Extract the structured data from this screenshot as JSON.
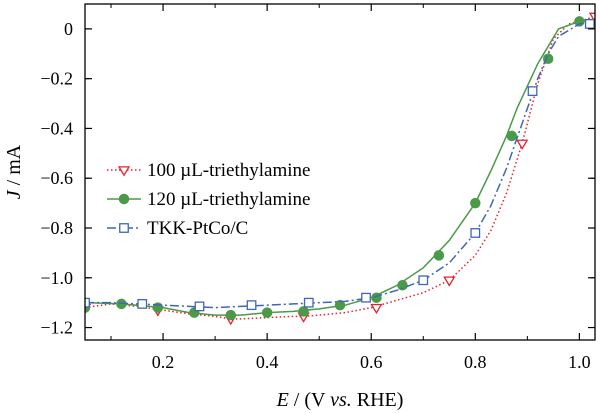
{
  "chart_data": {
    "type": "line",
    "xlabel": {
      "italic": "E",
      "pre": " / (V ",
      "mid_italic": "vs.",
      "post": " RHE)"
    },
    "ylabel": {
      "italic": "J",
      "post": " / mA"
    },
    "xlim": [
      0.05,
      1.03
    ],
    "ylim": [
      -1.25,
      0.1
    ],
    "xticks": [
      0.2,
      0.4,
      0.6,
      0.8,
      1.0
    ],
    "xtick_labels": [
      "0.2",
      "0.4",
      "0.6",
      "0.8",
      "1.0"
    ],
    "yticks": [
      0,
      -0.2,
      -0.4,
      -0.6,
      -0.8,
      -1.0,
      -1.2
    ],
    "ytick_labels": [
      "0",
      "−0.2",
      "−0.4",
      "−0.6",
      "−0.8",
      "−1.0",
      "−1.2"
    ],
    "grid": false,
    "legend_position": "center-left",
    "series": [
      {
        "name": "100 µL-triethylamine",
        "color": "#e8222b",
        "line_style": "dotted",
        "marker": "triangle-down-open",
        "x": [
          0.05,
          0.1,
          0.15,
          0.2,
          0.25,
          0.3,
          0.33,
          0.35,
          0.4,
          0.45,
          0.47,
          0.5,
          0.55,
          0.6,
          0.65,
          0.7,
          0.75,
          0.8,
          0.83,
          0.86,
          0.89,
          0.92,
          0.95,
          0.98,
          1.0,
          1.03
        ],
        "y": [
          -1.12,
          -1.105,
          -1.115,
          -1.13,
          -1.145,
          -1.155,
          -1.165,
          -1.165,
          -1.16,
          -1.155,
          -1.155,
          -1.15,
          -1.14,
          -1.12,
          -1.09,
          -1.06,
          -1.01,
          -0.91,
          -0.81,
          -0.66,
          -0.46,
          -0.22,
          -0.04,
          0.02,
          0.03,
          0.05
        ],
        "marker_x": [
          0.05,
          0.19,
          0.33,
          0.47,
          0.61,
          0.75,
          0.89,
          1.03
        ],
        "marker_y": [
          -1.12,
          -1.13,
          -1.165,
          -1.155,
          -1.12,
          -1.01,
          -0.46,
          0.05
        ]
      },
      {
        "name": "120 µL-triethylamine",
        "color": "#4a9a4a",
        "line_style": "solid",
        "marker": "circle-filled",
        "x": [
          0.05,
          0.12,
          0.2,
          0.25,
          0.3,
          0.35,
          0.4,
          0.45,
          0.5,
          0.55,
          0.6,
          0.65,
          0.7,
          0.75,
          0.8,
          0.83,
          0.86,
          0.88,
          0.9,
          0.92,
          0.94,
          0.96,
          1.0,
          1.03
        ],
        "y": [
          -1.1,
          -1.105,
          -1.12,
          -1.14,
          -1.15,
          -1.15,
          -1.14,
          -1.135,
          -1.125,
          -1.11,
          -1.08,
          -1.03,
          -0.96,
          -0.85,
          -0.7,
          -0.57,
          -0.43,
          -0.32,
          -0.23,
          -0.14,
          -0.07,
          0.0,
          0.03,
          0.04
        ],
        "marker_x": [
          0.05,
          0.12,
          0.19,
          0.26,
          0.33,
          0.4,
          0.47,
          0.54,
          0.61,
          0.66,
          0.73,
          0.8,
          0.87,
          0.94,
          1.0
        ],
        "marker_y": [
          -1.12,
          -1.105,
          -1.12,
          -1.14,
          -1.15,
          -1.14,
          -1.135,
          -1.11,
          -1.08,
          -1.03,
          -0.91,
          -0.7,
          -0.43,
          -0.12,
          0.03
        ]
      },
      {
        "name": "TKK-PtCo/C",
        "color": "#3f66b8",
        "line_style": "dashdot",
        "marker": "square-open",
        "x": [
          0.05,
          0.1,
          0.15,
          0.2,
          0.25,
          0.3,
          0.35,
          0.4,
          0.45,
          0.5,
          0.55,
          0.6,
          0.65,
          0.7,
          0.75,
          0.8,
          0.83,
          0.86,
          0.88,
          0.9,
          0.92,
          0.94,
          0.96,
          1.0,
          1.03
        ],
        "y": [
          -1.1,
          -1.1,
          -1.105,
          -1.11,
          -1.115,
          -1.12,
          -1.115,
          -1.11,
          -1.105,
          -1.1,
          -1.095,
          -1.08,
          -1.05,
          -1.01,
          -0.94,
          -0.82,
          -0.71,
          -0.56,
          -0.44,
          -0.32,
          -0.2,
          -0.1,
          -0.03,
          0.02,
          0.03
        ],
        "marker_x": [
          0.05,
          0.16,
          0.27,
          0.37,
          0.48,
          0.59,
          0.7,
          0.8,
          0.91,
          1.02
        ],
        "marker_y": [
          -1.1,
          -1.105,
          -1.115,
          -1.11,
          -1.1,
          -1.08,
          -1.01,
          -0.82,
          -0.25,
          0.02
        ]
      }
    ]
  }
}
